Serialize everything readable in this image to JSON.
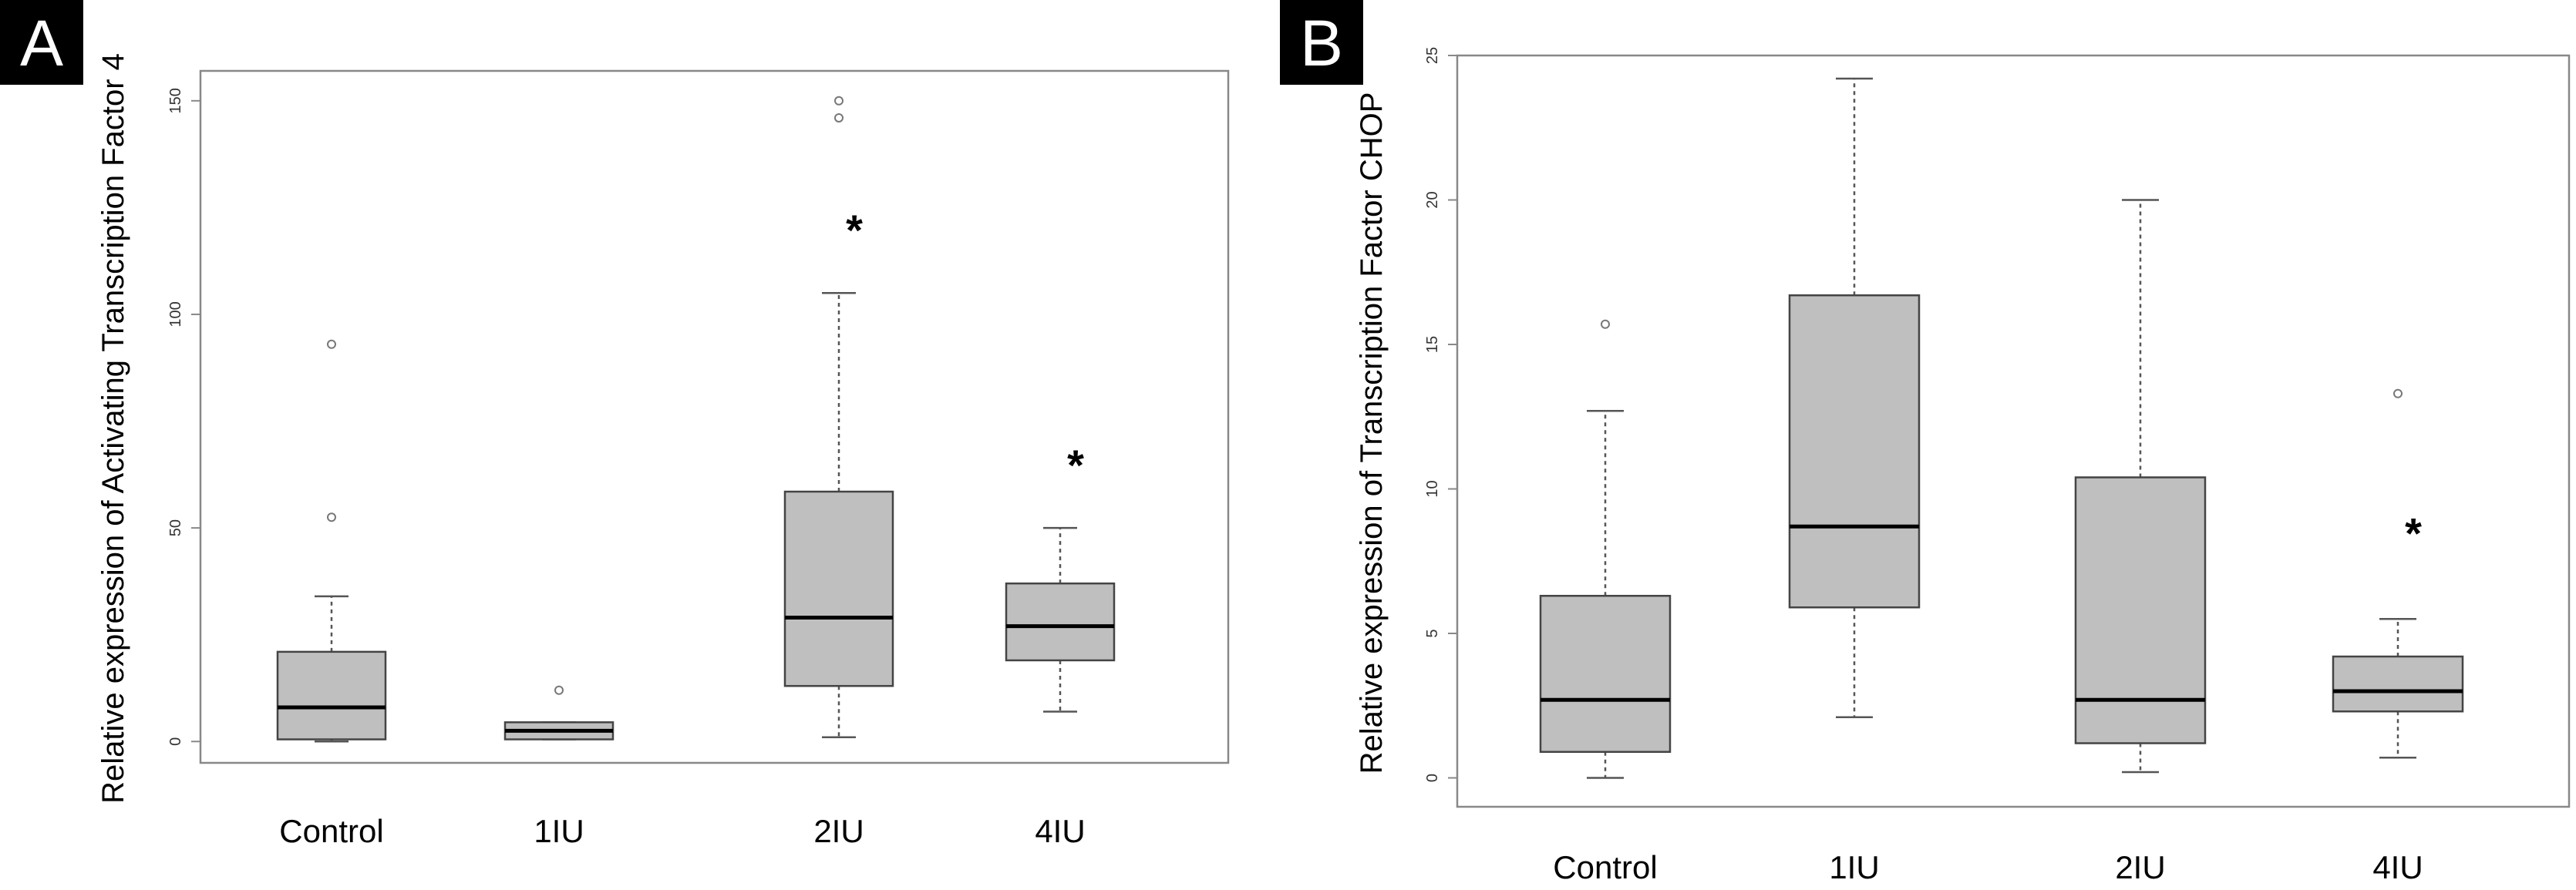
{
  "chart_data": [
    {
      "type": "box",
      "panel_label": "A",
      "ylabel": "Relative expression of Activating Transcription Factor 4",
      "categories": [
        "Control",
        "1IU",
        "2IU",
        "4IU"
      ],
      "y_ticks": [
        "0",
        "50",
        "100",
        "150"
      ],
      "ylim": [
        -5,
        157
      ],
      "box_color": "#bfbfbf",
      "significance_mark": "*",
      "boxes": [
        {
          "category": "Control",
          "whisker_low": 0,
          "q1": 0.5,
          "median": 8,
          "q3": 21,
          "whisker_high": 34,
          "outliers": [
            93,
            52.5
          ],
          "significant": false
        },
        {
          "category": "1IU",
          "whisker_low": 0.5,
          "q1": 0.5,
          "median": 2.5,
          "q3": 4.5,
          "whisker_high": 4.5,
          "outliers": [
            12
          ],
          "significant": false
        },
        {
          "category": "2IU",
          "whisker_low": 1,
          "q1": 13,
          "median": 29,
          "q3": 58.5,
          "whisker_high": 105,
          "outliers": [
            150,
            146
          ],
          "significant": true
        },
        {
          "category": "4IU",
          "whisker_low": 7,
          "q1": 19,
          "median": 27,
          "q3": 37,
          "whisker_high": 50,
          "outliers": [],
          "significant": true
        }
      ]
    },
    {
      "type": "box",
      "panel_label": "B",
      "ylabel": "Relative expression of Transcription Factor CHOP",
      "categories": [
        "Control",
        "1IU",
        "2IU",
        "4IU"
      ],
      "y_ticks": [
        "0",
        "5",
        "10",
        "15",
        "20",
        "25"
      ],
      "ylim": [
        -1,
        25
      ],
      "box_color": "#bfbfbf",
      "significance_mark": "*",
      "boxes": [
        {
          "category": "Control",
          "whisker_low": 0,
          "q1": 0.9,
          "median": 2.7,
          "q3": 6.3,
          "whisker_high": 12.7,
          "outliers": [
            15.7
          ],
          "significant": false
        },
        {
          "category": "1IU",
          "whisker_low": 2.1,
          "q1": 5.9,
          "median": 8.7,
          "q3": 16.7,
          "whisker_high": 24.2,
          "outliers": [],
          "significant": false
        },
        {
          "category": "2IU",
          "whisker_low": 0.2,
          "q1": 1.2,
          "median": 2.7,
          "q3": 10.4,
          "whisker_high": 20,
          "outliers": [],
          "significant": false
        },
        {
          "category": "4IU",
          "whisker_low": 0.7,
          "q1": 2.3,
          "median": 3,
          "q3": 4.2,
          "whisker_high": 5.5,
          "outliers": [
            13.3
          ],
          "significant": true
        }
      ]
    }
  ]
}
